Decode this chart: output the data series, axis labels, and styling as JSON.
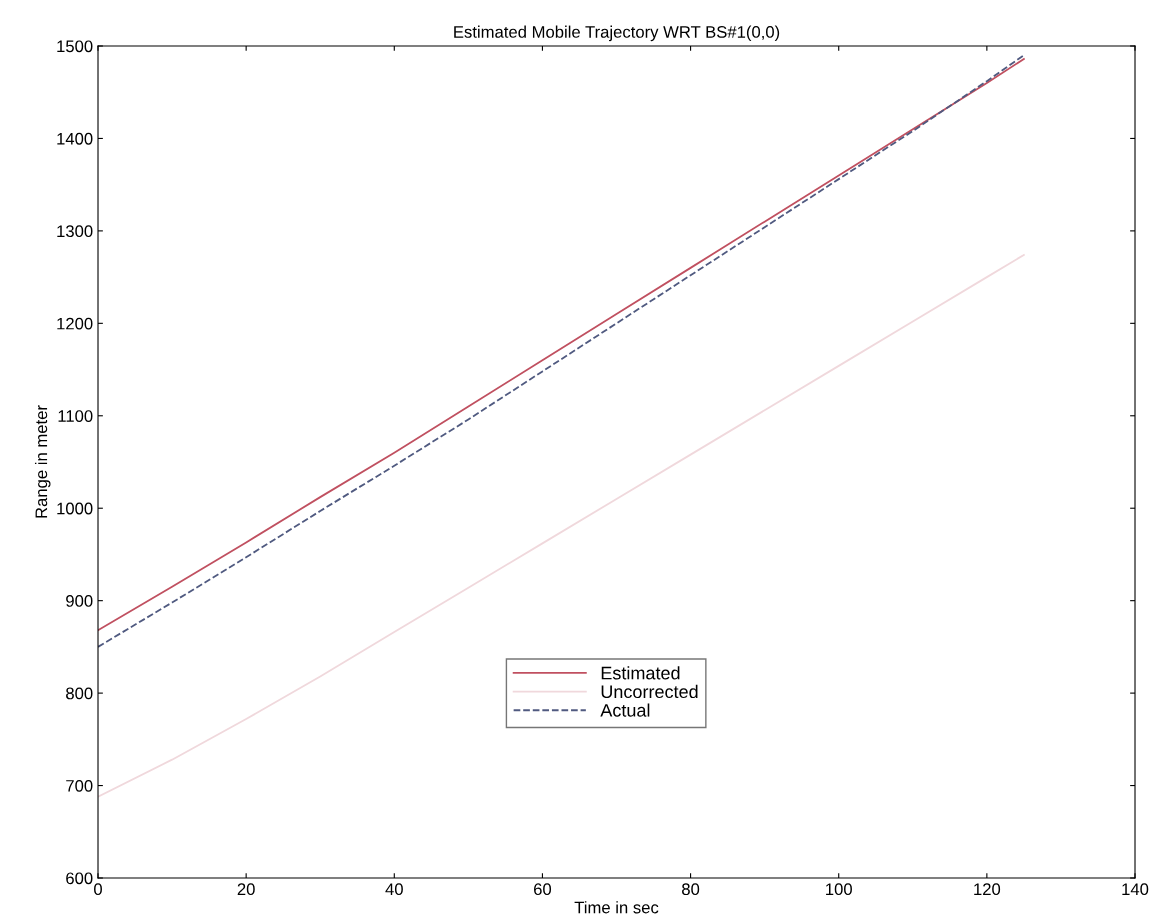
{
  "chart_data": {
    "type": "line",
    "title": "Estimated Mobile Trajectory WRT BS#1(0,0)",
    "xlabel": "Time in sec",
    "ylabel": "Range in meter",
    "x": [
      0,
      10,
      20,
      30,
      40,
      50,
      60,
      70,
      80,
      90,
      100,
      110,
      120,
      125
    ],
    "series": [
      {
        "name": "Estimated",
        "color": "#c05060",
        "line_style": "solid",
        "values": [
          868,
          915,
          963,
          1012,
          1060,
          1110,
          1160,
          1210,
          1260,
          1310,
          1360,
          1410,
          1460,
          1486
        ]
      },
      {
        "name": "Uncorrected",
        "color": "#f0d8dc",
        "line_style": "solid",
        "values": [
          688,
          728,
          772,
          818,
          866,
          914,
          962,
          1010,
          1058,
          1106,
          1154,
          1202,
          1250,
          1274
        ]
      },
      {
        "name": "Actual",
        "color": "#505a80",
        "line_style": "dashed",
        "values": [
          850,
          898,
          947,
          997,
          1046,
          1096,
          1148,
          1200,
          1252,
          1304,
          1356,
          1408,
          1462,
          1490
        ]
      }
    ],
    "xlim": [
      0,
      140
    ],
    "xticks": [
      0,
      20,
      40,
      60,
      80,
      100,
      120,
      140
    ],
    "ylim": [
      600,
      1500
    ],
    "yticks": [
      600,
      700,
      800,
      900,
      1000,
      1100,
      1200,
      1300,
      1400,
      1500
    ],
    "grid": false,
    "legend": "bottom",
    "marker": "none"
  }
}
